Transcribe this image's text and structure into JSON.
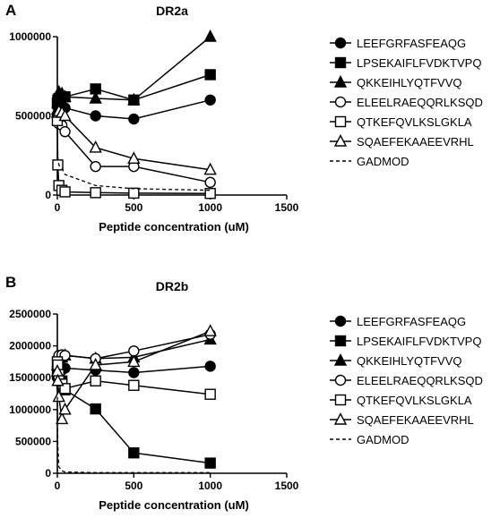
{
  "chart_data": [
    {
      "panel": "A",
      "type": "line",
      "title": "DR2a",
      "xlabel": "Peptide concentration (uM)",
      "ylabel": "",
      "xlim": [
        0,
        1500
      ],
      "ylim": [
        0,
        1000000
      ],
      "xticks": [
        "0",
        "500",
        "1000",
        "1500"
      ],
      "yticks": [
        "0",
        "500000",
        "1000000"
      ],
      "x": [
        0,
        3,
        10,
        30,
        50,
        250,
        500,
        1000
      ],
      "legend_position": "right",
      "series": [
        {
          "name": "LEEFGRFASFEAQG",
          "marker": "circle-filled",
          "values": [
            560000,
            560000,
            580000,
            560000,
            550000,
            500000,
            480000,
            600000
          ]
        },
        {
          "name": "LPSEKAIFLFVDKTVPQ",
          "marker": "square-filled",
          "values": [
            580000,
            600000,
            610000,
            620000,
            620000,
            670000,
            600000,
            760000
          ]
        },
        {
          "name": "QKKEIHLYQTFVVQ",
          "marker": "triangle-filled",
          "values": [
            540000,
            580000,
            650000,
            640000,
            620000,
            610000,
            600000,
            1000000
          ]
        },
        {
          "name": "ELEELRAEQQRLKSQD",
          "marker": "circle-open",
          "values": [
            500000,
            470000,
            450000,
            440000,
            400000,
            180000,
            180000,
            80000
          ]
        },
        {
          "name": "QTKEFQVLKSLGKLA",
          "marker": "square-open",
          "values": [
            470000,
            190000,
            60000,
            30000,
            20000,
            15000,
            12000,
            10000
          ]
        },
        {
          "name": "SQAEFEKAAEEVRHL",
          "marker": "triangle-open",
          "values": [
            520000,
            520000,
            530000,
            520000,
            500000,
            300000,
            230000,
            160000
          ]
        },
        {
          "name": "GADMOD",
          "marker": "none",
          "dashed": true,
          "values": [
            400000,
            230000,
            190000,
            170000,
            130000,
            60000,
            40000,
            30000
          ]
        }
      ]
    },
    {
      "panel": "B",
      "type": "line",
      "title": "DR2b",
      "xlabel": "Peptide concentration (uM)",
      "ylabel": "",
      "xlim": [
        0,
        1500
      ],
      "ylim": [
        0,
        2500000
      ],
      "xticks": [
        "0",
        "500",
        "1000",
        "1500"
      ],
      "yticks": [
        "0",
        "500000",
        "1000000",
        "1500000",
        "2000000",
        "2500000"
      ],
      "x": [
        0,
        3,
        10,
        30,
        50,
        250,
        500,
        1000
      ],
      "legend_position": "right",
      "series": [
        {
          "name": "LEEFGRFASFEAQG",
          "marker": "circle-filled",
          "values": [
            1500000,
            1550000,
            1600000,
            1620000,
            1650000,
            1620000,
            1580000,
            1680000
          ]
        },
        {
          "name": "LPSEKAIFLFVDKTVPQ",
          "marker": "square-filled",
          "values": [
            1580000,
            1620000,
            1550000,
            1450000,
            1310000,
            1010000,
            320000,
            160000
          ]
        },
        {
          "name": "QKKEIHLYQTFVVQ",
          "marker": "triangle-filled",
          "values": [
            1700000,
            1750000,
            1800000,
            1820000,
            1850000,
            1800000,
            1820000,
            2100000
          ]
        },
        {
          "name": "ELEELRAEQQRLKSQD",
          "marker": "circle-open",
          "values": [
            1780000,
            1800000,
            1850000,
            1860000,
            1850000,
            1800000,
            1920000,
            2180000
          ]
        },
        {
          "name": "QTKEFQVLKSLGKLA",
          "marker": "square-open",
          "values": [
            1750000,
            1700000,
            1550000,
            1400000,
            1330000,
            1450000,
            1380000,
            1240000
          ]
        },
        {
          "name": "SQAEFEKAAEEVRHL",
          "marker": "triangle-open",
          "values": [
            1600000,
            1450000,
            1200000,
            850000,
            1000000,
            1700000,
            1750000,
            2230000
          ]
        },
        {
          "name": "GADMOD",
          "marker": "none",
          "dashed": true,
          "values": [
            1200000,
            450000,
            100000,
            40000,
            20000,
            10000,
            10000,
            10000
          ]
        }
      ]
    }
  ]
}
